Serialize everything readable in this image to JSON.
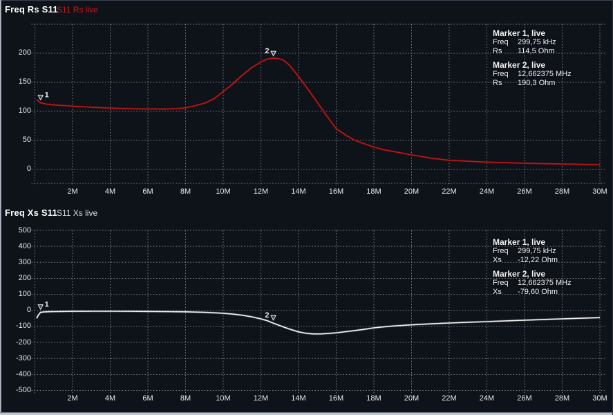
{
  "background": "#0e1219",
  "chart_data": [
    {
      "type": "line",
      "title": "Freq Rs S11",
      "legend": "S11 Rs live",
      "legend_color": "#cc1a1a",
      "grid": "dashed",
      "xlim": [
        0,
        30
      ],
      "x_unit": "MHz",
      "ylim": [
        -24,
        250
      ],
      "y_unit": "Ohm",
      "x_grid_values": [
        0,
        2,
        4,
        6,
        8,
        10,
        12,
        14,
        16,
        18,
        20,
        22,
        24,
        26,
        28,
        30
      ],
      "x_tick_values": [
        2,
        4,
        6,
        8,
        10,
        12,
        14,
        16,
        18,
        20,
        22,
        24,
        26,
        28,
        30
      ],
      "x_tick_labels": [
        "2M",
        "4M",
        "6M",
        "8M",
        "10M",
        "12M",
        "14M",
        "16M",
        "18M",
        "20M",
        "22M",
        "24M",
        "26M",
        "28M",
        "30M"
      ],
      "y_grid_values": [
        250,
        200,
        150,
        100,
        50,
        0,
        -24
      ],
      "y_tick_values": [
        200,
        150,
        100,
        50,
        0
      ],
      "series": [
        {
          "name": "S11 Rs live",
          "name_id": "rs-trace",
          "color": "#c01616",
          "glow_color": "#6f0d0d",
          "points": [
            [
              0.1,
              120
            ],
            [
              0.3,
              114.5
            ],
            [
              0.6,
              112.5
            ],
            [
              1,
              111
            ],
            [
              1.5,
              110
            ],
            [
              2,
              109
            ],
            [
              2.5,
              108
            ],
            [
              3,
              107
            ],
            [
              3.5,
              106.2
            ],
            [
              4,
              105.5
            ],
            [
              4.5,
              105
            ],
            [
              5,
              104.5
            ],
            [
              5.5,
              104.2
            ],
            [
              6,
              104
            ],
            [
              6.5,
              103.9
            ],
            [
              7,
              104
            ],
            [
              7.5,
              104.6
            ],
            [
              8,
              106
            ],
            [
              8.5,
              109.5
            ],
            [
              9,
              114
            ],
            [
              9.5,
              121.5
            ],
            [
              10,
              134
            ],
            [
              10.5,
              147
            ],
            [
              11,
              162
            ],
            [
              11.5,
              175
            ],
            [
              12,
              185
            ],
            [
              12.3,
              189.5
            ],
            [
              12.6,
              191.5
            ],
            [
              12.9,
              191
            ],
            [
              13.2,
              188
            ],
            [
              13.5,
              180
            ],
            [
              14,
              160
            ],
            [
              14.5,
              138
            ],
            [
              15,
              115
            ],
            [
              15.5,
              92
            ],
            [
              16,
              70
            ],
            [
              16.5,
              59
            ],
            [
              17,
              50
            ],
            [
              17.5,
              44
            ],
            [
              18,
              38.5
            ],
            [
              18.5,
              34
            ],
            [
              19,
              31
            ],
            [
              19.5,
              28
            ],
            [
              20,
              25
            ],
            [
              21,
              19.5
            ],
            [
              22,
              15.5
            ],
            [
              23,
              14
            ],
            [
              24,
              12.5
            ],
            [
              25,
              11.5
            ],
            [
              26,
              10.5
            ],
            [
              27,
              9.8
            ],
            [
              28,
              9.2
            ],
            [
              29,
              8.6
            ],
            [
              30,
              8.2
            ]
          ]
        }
      ],
      "markers": [
        {
          "n": "1",
          "x": 0.29975,
          "y": 114.5,
          "digit_side": "right",
          "info_title": "Marker 1, live",
          "rows": [
            [
              "Freq",
              "299,75 kHz"
            ],
            [
              "Rs",
              "114,5 Ohm"
            ]
          ]
        },
        {
          "n": "2",
          "x": 12.662375,
          "y": 190.3,
          "digit_side": "left",
          "info_title": "Marker 2, live",
          "rows": [
            [
              "Freq",
              "12,662375 MHz"
            ],
            [
              "Rs",
              "190,3 Ohm"
            ]
          ]
        }
      ]
    },
    {
      "type": "line",
      "title": "Freq Xs S11",
      "legend": "S11 Xs live",
      "legend_color": "#d9dde3",
      "grid": "dashed",
      "xlim": [
        0,
        30
      ],
      "x_unit": "MHz",
      "ylim": [
        -500,
        500
      ],
      "y_unit": "Ohm",
      "x_grid_values": [
        0,
        2,
        4,
        6,
        8,
        10,
        12,
        14,
        16,
        18,
        20,
        22,
        24,
        26,
        28,
        30
      ],
      "x_tick_values": [
        2,
        4,
        6,
        8,
        10,
        12,
        14,
        16,
        18,
        20,
        22,
        24,
        26,
        28,
        30
      ],
      "x_tick_labels": [
        "2M",
        "4M",
        "6M",
        "8M",
        "10M",
        "12M",
        "14M",
        "16M",
        "18M",
        "20M",
        "22M",
        "24M",
        "26M",
        "28M",
        "30M"
      ],
      "y_grid_values": [
        500,
        400,
        300,
        200,
        100,
        0,
        -100,
        -200,
        -300,
        -400,
        -500
      ],
      "y_tick_values": [
        500,
        400,
        300,
        200,
        100,
        0,
        -100,
        -200,
        -300,
        -400,
        -500
      ],
      "series": [
        {
          "name": "S11 Xs live",
          "name_id": "xs-trace",
          "color": "#f0f0f0",
          "glow_color": "#8a8a8a",
          "points": [
            [
              0.1,
              -50
            ],
            [
              0.15,
              -36
            ],
            [
              0.2,
              -26
            ],
            [
              0.3,
              -12.22
            ],
            [
              0.5,
              -9.5
            ],
            [
              0.8,
              -8
            ],
            [
              1,
              -7.5
            ],
            [
              1.5,
              -6.5
            ],
            [
              2,
              -6
            ],
            [
              3,
              -5.5
            ],
            [
              4,
              -5.5
            ],
            [
              5,
              -6
            ],
            [
              6,
              -6.5
            ],
            [
              7,
              -7.5
            ],
            [
              8,
              -9
            ],
            [
              8.5,
              -10.5
            ],
            [
              9,
              -12.5
            ],
            [
              9.5,
              -15
            ],
            [
              10,
              -18
            ],
            [
              10.5,
              -23
            ],
            [
              11,
              -30
            ],
            [
              11.5,
              -40
            ],
            [
              12,
              -53
            ],
            [
              12.3,
              -63
            ],
            [
              12.66,
              -79.6
            ],
            [
              13,
              -95
            ],
            [
              13.5,
              -116
            ],
            [
              14,
              -134
            ],
            [
              14.4,
              -143
            ],
            [
              14.8,
              -147
            ],
            [
              15.2,
              -146.5
            ],
            [
              15.6,
              -144
            ],
            [
              16,
              -140
            ],
            [
              16.5,
              -133
            ],
            [
              17,
              -126
            ],
            [
              17.5,
              -118
            ],
            [
              18,
              -109
            ],
            [
              18.5,
              -103
            ],
            [
              19,
              -98
            ],
            [
              19.5,
              -94
            ],
            [
              20,
              -90
            ],
            [
              20.5,
              -87
            ],
            [
              21,
              -84
            ],
            [
              21.5,
              -81.5
            ],
            [
              22,
              -79
            ],
            [
              23,
              -74
            ],
            [
              24,
              -70
            ],
            [
              25,
              -65.5
            ],
            [
              26,
              -61
            ],
            [
              27,
              -57
            ],
            [
              28,
              -53
            ],
            [
              29,
              -49
            ],
            [
              30,
              -45
            ]
          ]
        }
      ],
      "markers": [
        {
          "n": "1",
          "x": 0.29975,
          "y": -12.22,
          "digit_side": "right",
          "info_title": "Marker 1, live",
          "rows": [
            [
              "Freq",
              "299,75 kHz"
            ],
            [
              "Xs",
              "-12,22 Ohm"
            ]
          ]
        },
        {
          "n": "2",
          "x": 12.662375,
          "y": -79.6,
          "digit_side": "left",
          "info_title": "Marker 2, live",
          "rows": [
            [
              "Freq",
              "12,662375 MHz"
            ],
            [
              "Xs",
              "-79,60 Ohm"
            ]
          ]
        }
      ]
    }
  ]
}
